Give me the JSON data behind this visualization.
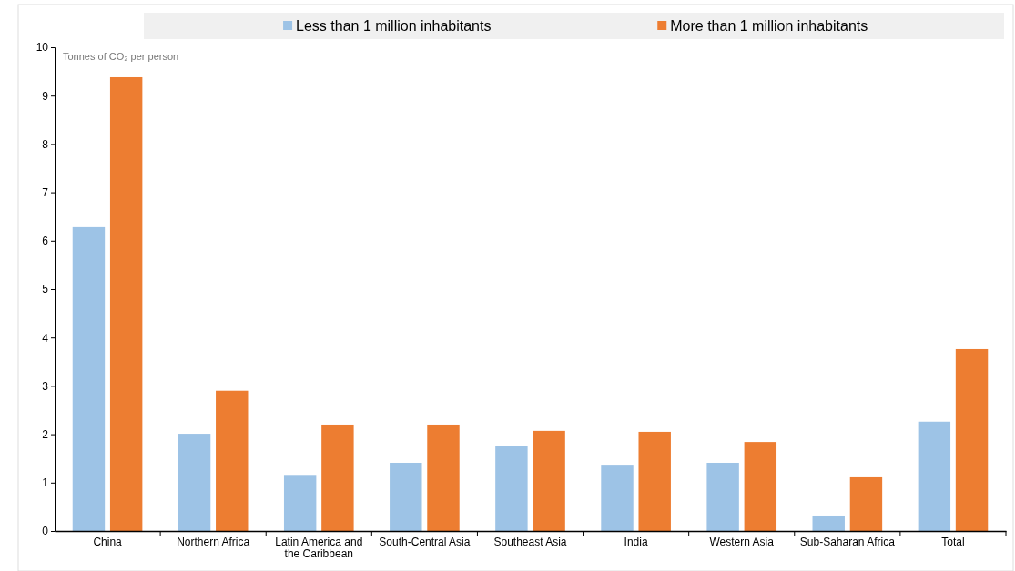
{
  "chart_data": {
    "type": "bar",
    "ylabel": "Tonnes of CO₂ per person",
    "categories": [
      "China",
      "Northern Africa",
      "Latin America and the Caribbean",
      "South-Central Asia",
      "Southeast Asia",
      "India",
      "Western Asia",
      "Sub-Saharan Africa",
      "Total"
    ],
    "series": [
      {
        "name": "Less than 1 million inhabitants",
        "color": "#9dc3e6",
        "values": [
          6.28,
          2.01,
          1.16,
          1.41,
          1.75,
          1.37,
          1.41,
          0.32,
          2.26
        ]
      },
      {
        "name": "More than 1 million inhabitants",
        "color": "#ed7d31",
        "values": [
          9.38,
          2.9,
          2.2,
          2.2,
          2.07,
          2.05,
          1.84,
          1.11,
          3.76
        ]
      }
    ],
    "ylim": [
      0,
      10
    ],
    "yticks": [
      0,
      1,
      2,
      3,
      4,
      5,
      6,
      7,
      8,
      9,
      10
    ],
    "legend": "top",
    "grid": false
  }
}
